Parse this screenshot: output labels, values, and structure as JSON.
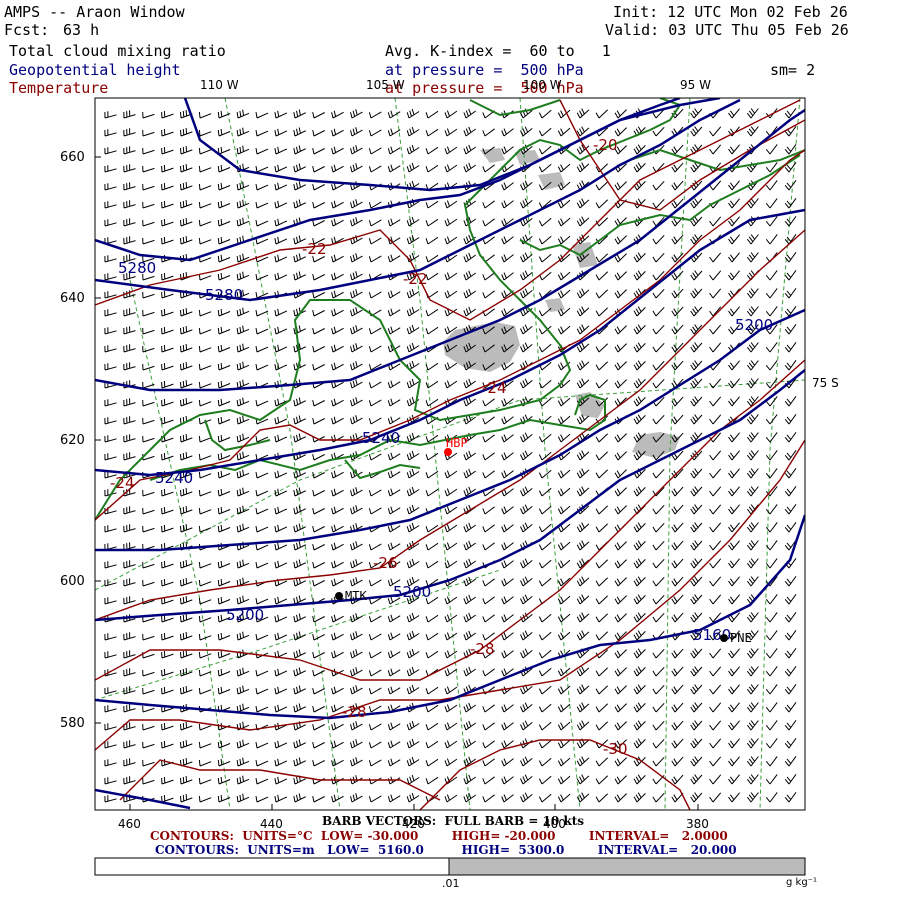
{
  "header": {
    "title": "AMPS -- Araon Window",
    "fcst_label": "Fcst:",
    "fcst_value": "63 h",
    "init": "Init: 12 UTC Mon 02 Feb 26",
    "valid": "Valid: 03 UTC Thu 05 Feb 26",
    "field1": "Total cloud mixing ratio",
    "field2": "Geopotential height",
    "field3": "Temperature",
    "kindex": "Avg. K-index =  60 to   1",
    "pressure1": "at pressure =  500 hPa",
    "pressure2": "at pressure =  500 hPa",
    "smooth": "sm= 2"
  },
  "lon_labels": [
    "110 W",
    "105 W",
    "100 W",
    "95 W"
  ],
  "lat_label": "75 S",
  "y_ticks": [
    "660",
    "640",
    "620",
    "600",
    "580"
  ],
  "x_ticks": [
    "460",
    "440",
    "420",
    "400",
    "380"
  ],
  "stations": {
    "hbp": "HBP",
    "mtk": "MTK",
    "pne": "PNE"
  },
  "height_contour_labels": [
    "5280",
    "5280",
    "5240",
    "5240",
    "5200",
    "5200",
    "5200",
    "5160"
  ],
  "temp_contour_labels": [
    "-20",
    "-22",
    "-22",
    "-24",
    "-24",
    "-26",
    "-28",
    "-28",
    "-30"
  ],
  "footer": {
    "barb_title": "BARB VECTORS:  FULL BARB = 10 kts",
    "temp_contours": "CONTOURS:  UNITS=°C  LOW= -30.000        HIGH= -20.000        INTERVAL=   2.0000",
    "height_contours": "CONTOURS:  UNITS=m   LOW=  5160.0         HIGH=  5300.0        INTERVAL=   20.000",
    "colorbar_tick": ".01",
    "colorbar_units": "g kg⁻¹"
  },
  "colors": {
    "height_contour": "#00007f",
    "temp_contour": "#8b0000",
    "coastline": "#1e7d1e",
    "grid": "#3aa03a",
    "cloud_fill": "#bbbbbb",
    "station": "#000000",
    "highlight_station": "#ff0000"
  }
}
